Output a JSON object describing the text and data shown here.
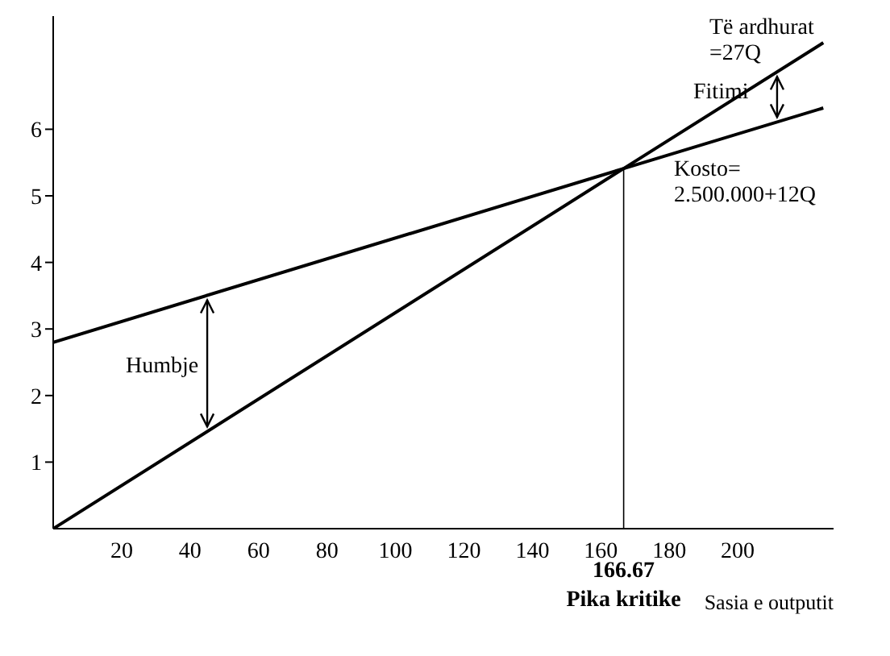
{
  "chart_data": {
    "type": "line",
    "xlabel": "Sasia e outputit",
    "xlim": [
      0,
      228
    ],
    "ylim": [
      0,
      7.7
    ],
    "xticks": [
      20,
      40,
      60,
      80,
      100,
      120,
      140,
      160,
      180,
      200
    ],
    "yticks": [
      1,
      2,
      3,
      4,
      5,
      6
    ],
    "series": [
      {
        "color": "#000000",
        "x": [
          0,
          166.67,
          225
        ],
        "values": [
          0,
          5.41,
          7.3
        ]
      },
      {
        "color": "#000000",
        "x": [
          0,
          166.67,
          225
        ],
        "values": [
          2.8,
          5.41,
          6.32
        ]
      }
    ],
    "ref_lines": [
      {
        "axis": "x",
        "value": 166.67,
        "label": "166.67",
        "color": "#000000"
      }
    ],
    "annotations": [
      "Të ardhurat =27Q",
      "Fitimi",
      "Kosto= 2.500.000+12Q",
      "Humbje",
      "Pika kritike"
    ],
    "marker": "none",
    "line_style": "solid",
    "grid": false,
    "legend": false
  }
}
